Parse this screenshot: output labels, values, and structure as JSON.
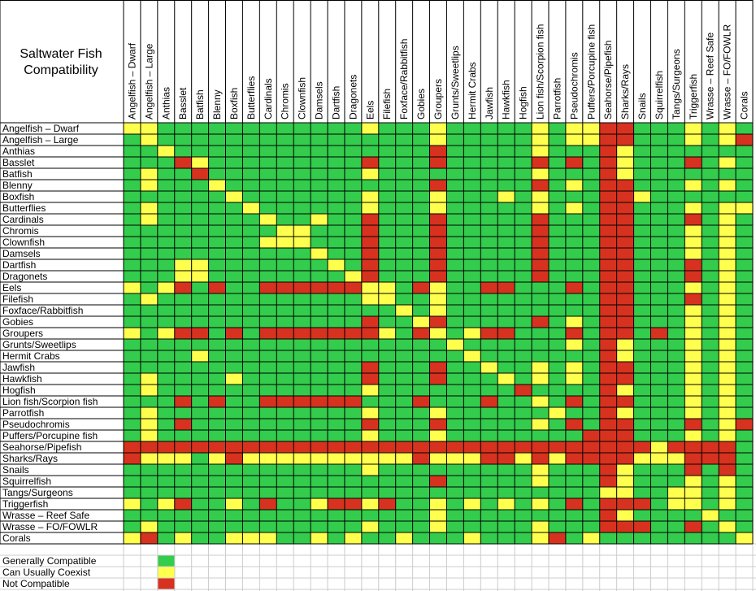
{
  "chart_data": {
    "type": "heatmap",
    "title_lines": [
      "Saltwater Fish",
      "Compatibility"
    ],
    "species": [
      "Angelfish – Dwarf",
      "Angelfish – Large",
      "Anthias",
      "Basslet",
      "Batfish",
      "Blenny",
      "Boxfish",
      "Butterflies",
      "Cardinals",
      "Chromis",
      "Clownfish",
      "Damsels",
      "Dartfish",
      "Dragonets",
      "Eels",
      "Filefish",
      "Foxface/Rabbitfish",
      "Gobies",
      "Groupers",
      "Grunts/Sweetlips",
      "Hermit Crabs",
      "Jawfish",
      "Hawkfish",
      "Hogfish",
      "Lion fish/Scorpion fish",
      "Parrotfish",
      "Pseudochromis",
      "Puffers/Porcupine fish",
      "Seahorse/Pipefish",
      "Sharks/Rays",
      "Snails",
      "Squirrelfish",
      "Tangs/Surgeons",
      "Triggerfish",
      "Wrasse – Reef Safe",
      "Wrasse – FO/FOWLR",
      "Corals"
    ],
    "row_labels": [
      "Angelfish – Dwarf",
      "Angelfish – Large",
      "Anthias",
      "Basslet",
      "Batfish",
      "Blenny",
      "Boxfish",
      "Butterflies",
      "Cardinals",
      "Chromis",
      "Clownfish",
      "Damsels",
      "Dartfish",
      "Dragonets",
      "Eels",
      "Filefish",
      "Foxface/Rabbitfish",
      "Gobies",
      "Groupers",
      "Grunts/Sweetlips",
      "Hermit Crabs",
      "Jawfish",
      "Hawkfish",
      "Hogfish",
      "Lion fish/Scorpion fish",
      "Parrotfish",
      "Pseudochromis",
      "Puffers/Porcupine fish",
      "Seahorse/Pipefish",
      "Sharks/Rays",
      "Snails",
      "Squirrelfish",
      "Tangs/Surgeons",
      "Triggerfish",
      "Wrasse – Reef Safe",
      "Wrasse – FO/FOWLR",
      "Corals"
    ],
    "value_codes": {
      "G": "Generally Compatible",
      "Y": "Can Usually Coexist",
      "R": "Not Compatible"
    },
    "matrix": [
      "YYGGGGGGGGGGGGYGGGYGGGGGYGYYRRGGGYGYG",
      "GYGGGGGGGGGGGGGGGGYGGGGGYGYYRRGGGYGYR",
      "GGYGGGGGGGGGGGGGGGRGGGGGYGGGRYGGGGGGG",
      "GGGRYGGGGGGGGGRGGGRGGGGGRGRGRYGGGRGYG",
      "GYGGRGGGGGGGGGYGGGGGGGGGYGGGRYGGGGGGG",
      "GYGGGYGGGGGGGGGGGGRGGGGGRGYGRRGGGYGYG",
      "GGGGGGYGGGGGGGYGGGYGGGYGYGGGRRYGGGGGG",
      "GYGGGGGYGGGGGGYGGGYGGGGGYGYGRRGGGYGYY",
      "GYGGGGGGYGGYGGRGGGRGGGGGRGGGRRGGGRGYG",
      "GGGGGGGGGYYGGGRGGGRGGGGGRGGGRRGGGYGYG",
      "GGGGGGGGYYYGGGRGGGRGGGGGRGGGRRGGGYGYG",
      "GGGGGGGGGGGYGGRGGGRGGGGGRGGGRRGGGYGYG",
      "GGGYYGGGGGGGYGRGGGRGGGGGRGGGRRGGGRGYG",
      "GGGYYGGGGGGGGYRGGGRGGGGGRGGGRRGGGRGYG",
      "YGYRGRGGRRRRRRYYGRYGGRRGGGRGRRGGGYGYG",
      "GYGGGGGGGGGGGGYYGGYGGGGGGGGGRRGGGRGYG",
      "GGGGGGGGGGGGGGGGYGYGGGGGGGGGRRGGGYGYG",
      "GGGGGGGGGGGGGGRGGYRGGGGGRGYGRRGGGYGYG",
      "YGYRRGRGRRRRRRRYGRYGYRRGGGRGRRGRGYGYG",
      "GGGGGGGGGGGGGGGGGGGYGGGGGGYGRYGGGYGYG",
      "GGGGYGGGGGGGGGGGGGGGYGGGGGGGRYGGGYGYG",
      "GGGGGGGGGGGGGGRGGGRGGYGGYGYGRRGGGYGYG",
      "GYGGGGYGGGGGGGRGGGRGGGYGYGYGRRGGGYGYG",
      "GYGGGGGGGGGGGGYGGGGGGGGRGGGGRYGGGYGYG",
      "GGGRGRGGRRRRRRGGGRGGGRGGYGRGRRGGGYGYG",
      "GYGGGGGGGGGGGGYGGGYGGGGGGYGGRYGGGYGYG",
      "GYGRGGGGGGGGGGRGGGRGGGGGYGRGRRGGGRGYR",
      "GYGGGGGGGGGGGGYGGGYGGGGGGGGRRRGGGYGYG",
      "RRRRRRRRRRRRRRRRRRRRRRRRRRRRRRRYRRRRG",
      "RYYYGYRYYYYYYYYYYRYYYRRYRYRRRRYYYRRRG",
      "GGGGGGGGGGGGGGYGGGGGGGGGYGGGRYGGGRGRG",
      "GGGGGGGGGGGGGGGGGGRGGGGGYGGGRYGGGYGYG",
      "GGGGGGGGGGGGGGGGGGGGGGGGGGGGYYGGYYGYG",
      "YGYRGGYGRGGYRRYRGGYGYGYGYGRGRRRGYYGYG",
      "GGGGGGGGGGGGGGGGGGYGGGGGGGGGRYGGGGYGG",
      "GYGGGGGGGGGGGGYGGGYGGGGGYGGGRRRGGRGYG",
      "YRGYGGYYYGGYGYGGYGGGYGGGYRGYGGGGGGGGY"
    ],
    "colors": {
      "G": "#33cc4d",
      "Y": "#ffff4d",
      "R": "#d7321f",
      "grid": "#000000",
      "guide": "#cccccc"
    },
    "legend": [
      {
        "code": "G",
        "label": "Generally Compatible"
      },
      {
        "code": "Y",
        "label": "Can Usually Coexist"
      },
      {
        "code": "R",
        "label": "Not Compatible"
      }
    ]
  }
}
